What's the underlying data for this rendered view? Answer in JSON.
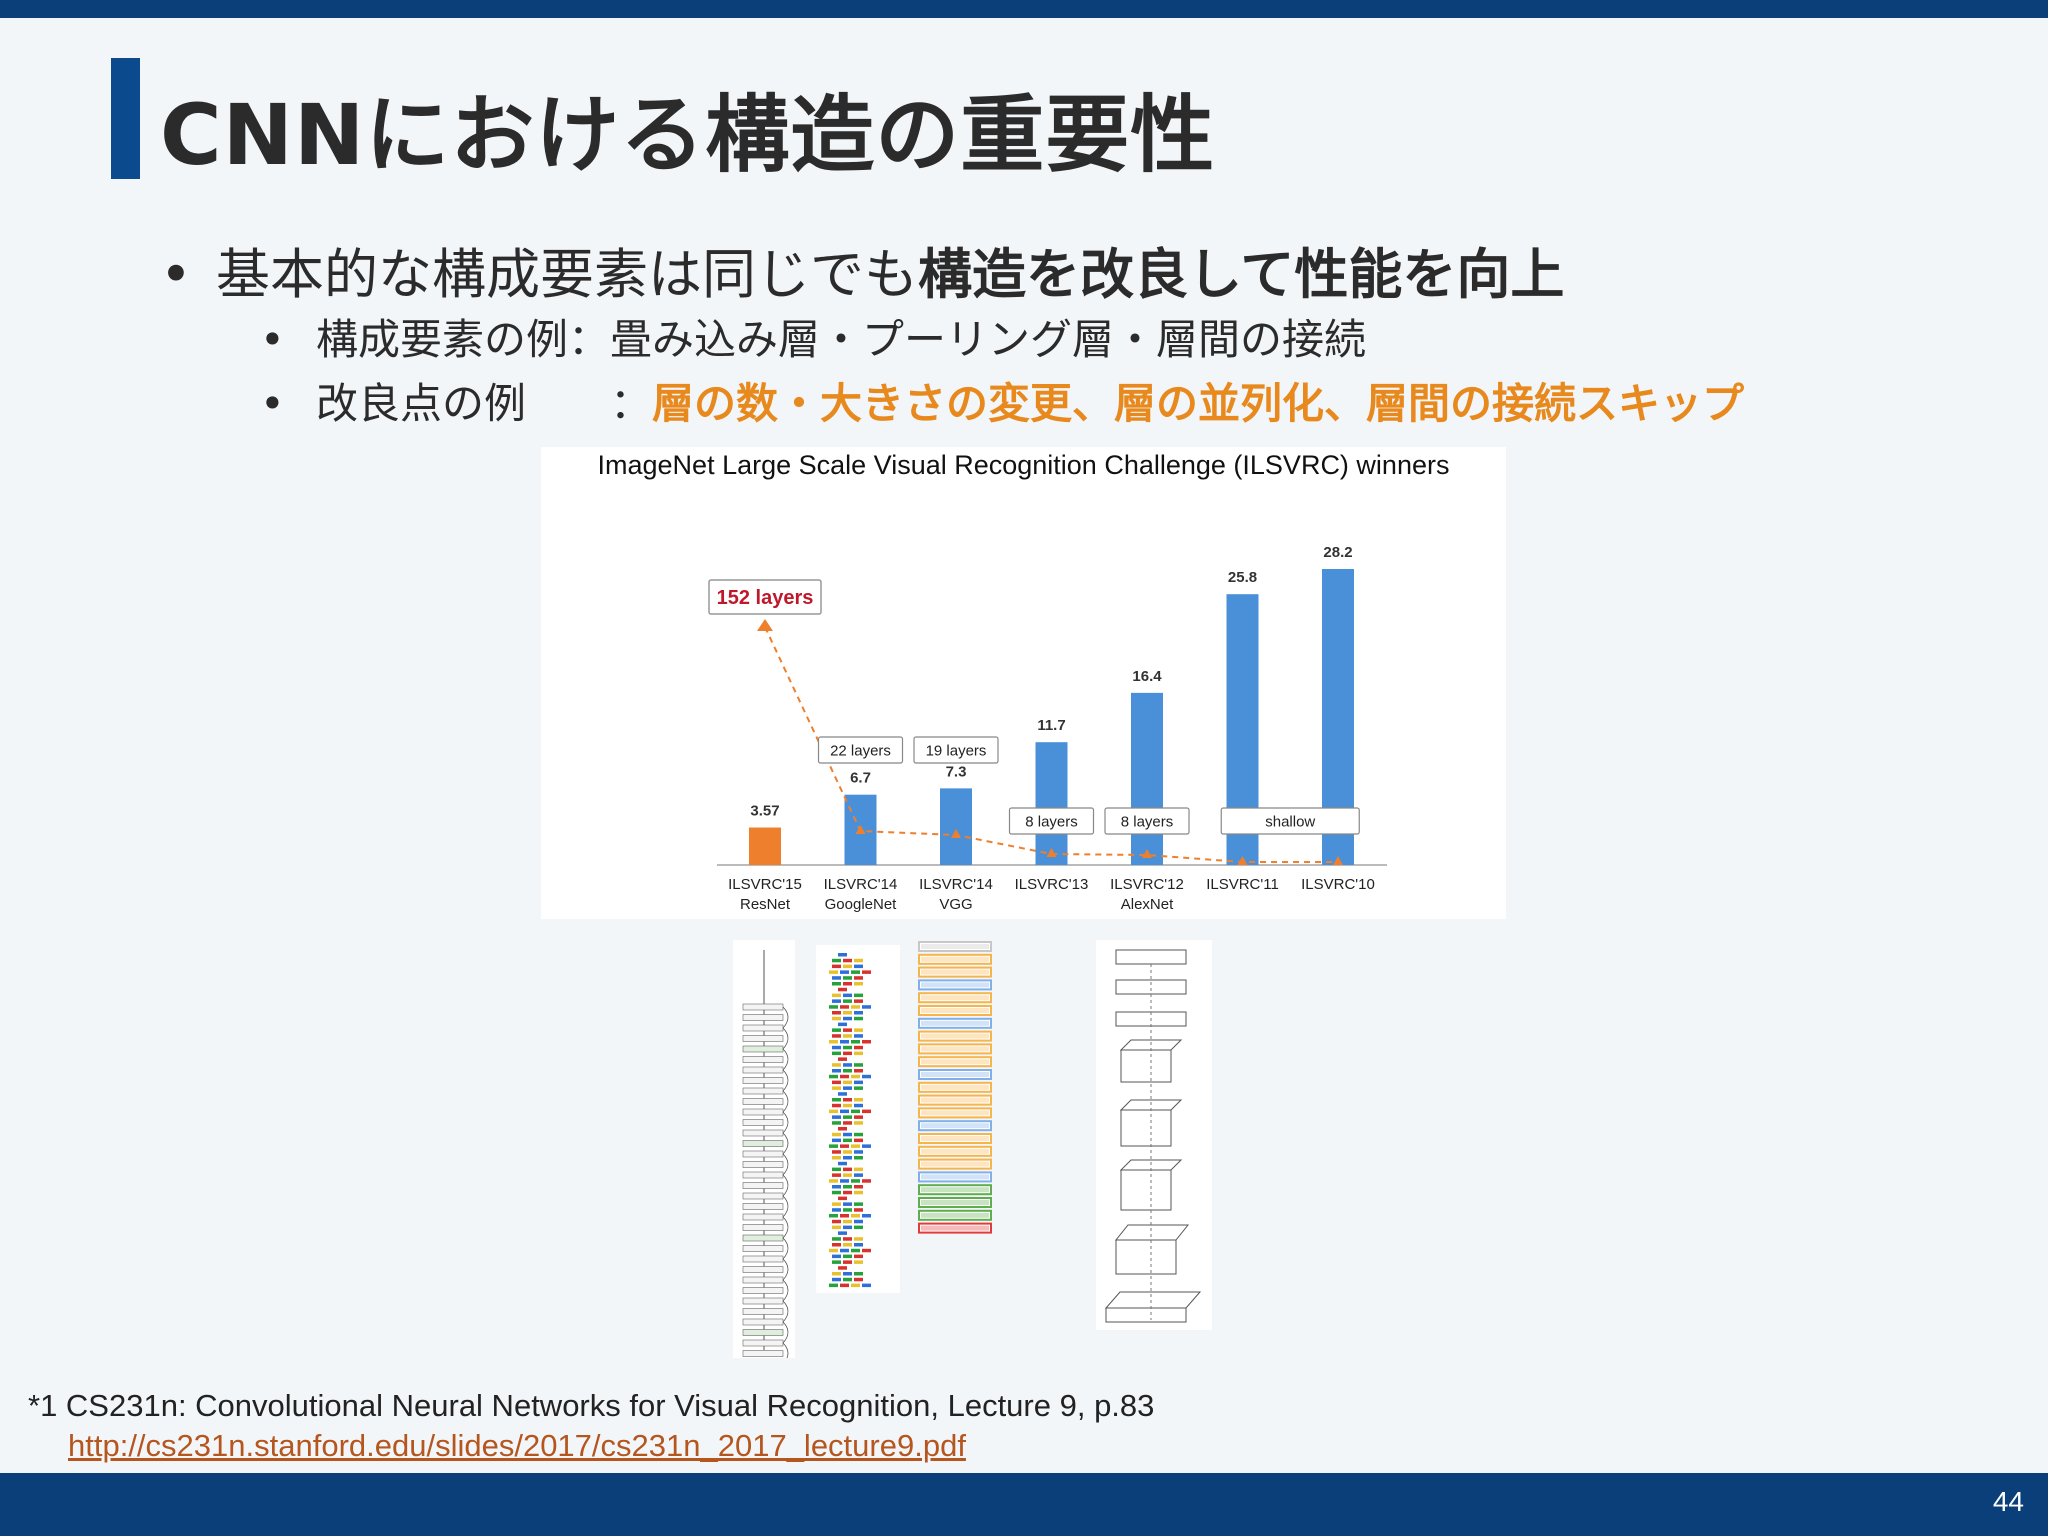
{
  "slide": {
    "title": "CNNにおける構造の重要性",
    "page_number": "44",
    "bullets": {
      "b1": {
        "bullet": "•",
        "normal": "基本的な構成要素は同じでも",
        "strong": "構造を改良して性能を向上"
      },
      "b2": {
        "bullet": "•",
        "label": "構成要素の例",
        "colon": "：",
        "text": "畳み込み層・プーリング層・層間の接続"
      },
      "b3": {
        "bullet": "•",
        "label": "改良点の例",
        "colon": "：",
        "text": "層の数・大きさの変更、層の並列化、層間の接続スキップ"
      }
    },
    "footnote": {
      "text": "*1 CS231n: Convolutional Neural Networks for Visual Recognition, Lecture 9, p.83",
      "link": "http://cs231n.stanford.edu/slides/2017/cs231n_2017_lecture9.pdf"
    },
    "colors": {
      "brand": "#0b3f7a",
      "accent": "#e8891d",
      "bar_blue": "#4a90d9",
      "bar_orange": "#ee7f2d",
      "callout_red": "#c0182b"
    }
  },
  "chart_data": {
    "type": "bar",
    "title": "ImageNet Large Scale Visual Recognition Challenge (ILSVRC) winners",
    "categories": [
      "ILSVRC'15",
      "ILSVRC'14",
      "ILSVRC'14",
      "ILSVRC'13",
      "ILSVRC'12",
      "ILSVRC'11",
      "ILSVRC'10"
    ],
    "subcategories": [
      "ResNet",
      "GoogleNet",
      "VGG",
      "",
      "AlexNet",
      "",
      ""
    ],
    "values": [
      3.57,
      6.7,
      7.3,
      11.7,
      16.4,
      25.8,
      28.2
    ],
    "value_labels": [
      "3.57",
      "6.7",
      "7.3",
      "11.7",
      "16.4",
      "25.8",
      "28.2"
    ],
    "layer_values": [
      152,
      22,
      19,
      8,
      8,
      null,
      null
    ],
    "annotations": [
      "152 layers",
      "22 layers",
      "19 layers",
      "8 layers",
      "8 layers",
      "shallow"
    ],
    "ylim": [
      0,
      30
    ],
    "xlabel": "",
    "ylabel": "",
    "grid": false
  }
}
